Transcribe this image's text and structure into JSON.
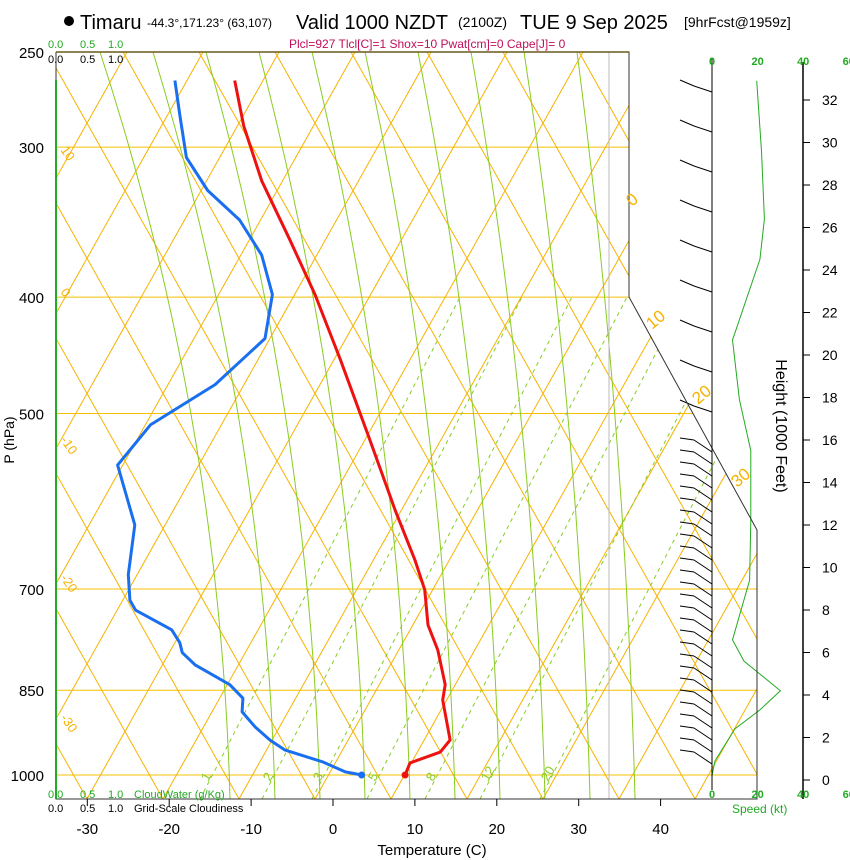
{
  "header": {
    "station": "Timaru",
    "coords": "-44.3°,171.23° (63,107)",
    "valid": "Valid 1000 NZDT",
    "utc": "(2100Z)",
    "date": "TUE 9 Sep 2025",
    "forecast": "[9hrFcst@1959z]",
    "indices": "Plcl=927 Tlcl[C]=1 Shox=10 Pwat[cm]=0 Cape[J]= 0"
  },
  "cloud_scale": {
    "ticks": [
      "0.0",
      "0.5",
      "1.0"
    ],
    "cloudwater_label": "CloudWater (g/Kg)",
    "cloudiness_label": "Grid-Scale Cloudiness"
  },
  "colors": {
    "temperature": "#ee1111",
    "dewpoint": "#1a6ff0",
    "adiabat": "#f5b300",
    "moist": "#88cc22",
    "speed": "#22aa22",
    "indices": "#c0105a"
  },
  "chart_data": {
    "type": "line",
    "title": "Valid 1000 NZDT (2100Z) TUE 9 Sep 2025",
    "xlabel": "Temperature (C)",
    "ylabel": "P (hPa)",
    "xlim": [
      -34,
      48
    ],
    "ylim": [
      1047,
      250
    ],
    "x_ticks": [
      "-30",
      "-20",
      "-10",
      "0",
      "10",
      "20",
      "30",
      "40"
    ],
    "x_tick_values": [
      -30,
      -20,
      -10,
      0,
      10,
      20,
      30,
      40
    ],
    "y_ticks": [
      "250",
      "300",
      "400",
      "500",
      "700",
      "850",
      "1000"
    ],
    "y_tick_values": [
      250,
      300,
      400,
      500,
      700,
      850,
      1000
    ],
    "grid": true,
    "series": [
      {
        "name": "Temperature",
        "points": [
          [
            264,
            -12.0
          ],
          [
            288,
            -10.9
          ],
          [
            320,
            -8.7
          ],
          [
            358,
            -5.3
          ],
          [
            398,
            -2.2
          ],
          [
            451,
            0.9
          ],
          [
            526,
            4.5
          ],
          [
            602,
            7.6
          ],
          [
            662,
            10.0
          ],
          [
            701,
            11.2
          ],
          [
            750,
            11.6
          ],
          [
            787,
            12.8
          ],
          [
            841,
            13.7
          ],
          [
            866,
            13.4
          ],
          [
            935,
            14.3
          ],
          [
            957,
            13.1
          ],
          [
            977,
            9.4
          ],
          [
            1000,
            8.8
          ]
        ]
      },
      {
        "name": "Dewpoint",
        "points": [
          [
            264,
            -19.3
          ],
          [
            282,
            -18.7
          ],
          [
            306,
            -17.9
          ],
          [
            326,
            -15.3
          ],
          [
            345,
            -11.4
          ],
          [
            369,
            -8.7
          ],
          [
            398,
            -7.4
          ],
          [
            433,
            -8.3
          ],
          [
            473,
            -14.4
          ],
          [
            511,
            -22.3
          ],
          [
            552,
            -26.3
          ],
          [
            619,
            -24.2
          ],
          [
            681,
            -25.0
          ],
          [
            715,
            -24.8
          ],
          [
            729,
            -24.1
          ],
          [
            757,
            -19.7
          ],
          [
            776,
            -18.7
          ],
          [
            791,
            -18.4
          ],
          [
            810,
            -16.8
          ],
          [
            841,
            -12.6
          ],
          [
            863,
            -11.0
          ],
          [
            886,
            -11.1
          ],
          [
            912,
            -9.5
          ],
          [
            935,
            -7.7
          ],
          [
            953,
            -5.9
          ],
          [
            975,
            -1.3
          ],
          [
            994,
            1.5
          ],
          [
            1000,
            3.5
          ]
        ]
      }
    ],
    "adiabat_labels_left": [
      "10",
      "0",
      "-10",
      "-20",
      "-30"
    ],
    "adiabat_labels_right": [
      "0",
      "10",
      "20",
      "30"
    ],
    "mixing_ratio_labels": [
      "1",
      "2",
      "3",
      "5",
      "8",
      "12",
      "20"
    ],
    "wind": {
      "ylabel": "Height (1000 Feet)",
      "xlabel": "Speed (kt)",
      "height_ticks": [
        "0",
        "2",
        "4",
        "6",
        "8",
        "10",
        "12",
        "14",
        "16",
        "18",
        "20",
        "22",
        "24",
        "26",
        "28",
        "30",
        "32"
      ],
      "height_tick_values": [
        0,
        2,
        4,
        6,
        8,
        10,
        12,
        14,
        16,
        18,
        20,
        22,
        24,
        26,
        28,
        30,
        32
      ],
      "speed_ticks": [
        "0",
        "20",
        "40",
        "60"
      ],
      "speed_tick_values": [
        0,
        20,
        40,
        60
      ],
      "speed_profile": [
        [
          32.9,
          19.6
        ],
        [
          29.6,
          21.7
        ],
        [
          26.4,
          23
        ],
        [
          24.5,
          21
        ],
        [
          20.7,
          9
        ],
        [
          17.9,
          12
        ],
        [
          15.5,
          17
        ],
        [
          12.2,
          17
        ],
        [
          9.4,
          16.5
        ],
        [
          6.6,
          9
        ],
        [
          5.6,
          14
        ],
        [
          4.2,
          30
        ],
        [
          3.3,
          21
        ],
        [
          2.4,
          10
        ],
        [
          0.9,
          1.3
        ],
        [
          0.2,
          0
        ]
      ]
    }
  }
}
